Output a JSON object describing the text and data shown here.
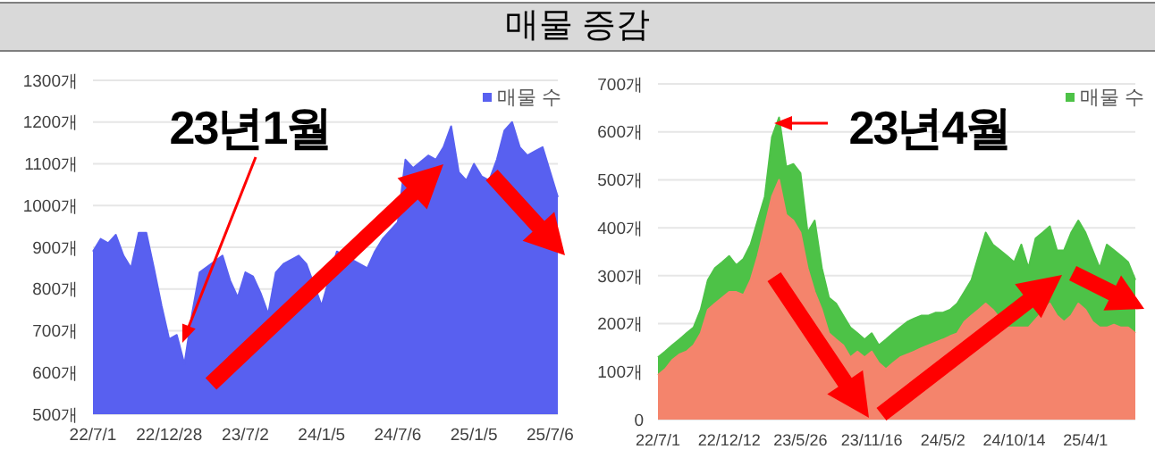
{
  "chart_data": [
    {
      "type": "area",
      "title": "매물 증감",
      "categories": [
        "22/7/1",
        null,
        null,
        null,
        null,
        null,
        null,
        null,
        null,
        null,
        "22/12/28",
        null,
        null,
        null,
        null,
        null,
        null,
        null,
        null,
        null,
        "23/7/2",
        null,
        null,
        null,
        null,
        null,
        null,
        null,
        null,
        null,
        "24/1/5",
        null,
        null,
        null,
        null,
        null,
        null,
        null,
        null,
        null,
        "24/7/6",
        null,
        null,
        null,
        null,
        null,
        null,
        null,
        null,
        null,
        "25/1/5",
        null,
        null,
        null,
        null,
        null,
        null,
        null,
        null,
        null,
        "25/7/6",
        null
      ],
      "series": [
        {
          "name": "매물 수",
          "color": "#5860f0",
          "values": [
            890,
            920,
            910,
            930,
            880,
            850,
            935,
            935,
            850,
            760,
            680,
            690,
            620,
            740,
            840,
            null,
            null,
            880,
            820,
            780,
            840,
            830,
            790,
            740,
            840,
            860,
            null,
            880,
            860,
            null,
            760,
            null,
            890,
            null,
            null,
            null,
            850,
            890,
            920,
            null,
            960,
            1110,
            1090,
            null,
            1120,
            1110,
            1140,
            1190,
            1080,
            1060,
            1100,
            1070,
            1060,
            1110,
            1180,
            1200,
            1140,
            1120,
            1130,
            1140,
            1080,
            1020
          ]
        }
      ],
      "ylim": [
        500,
        1300
      ],
      "yticks": [
        {
          "value": 500,
          "label": "500개"
        },
        {
          "value": 600,
          "label": "600개"
        },
        {
          "value": 700,
          "label": "700개"
        },
        {
          "value": 800,
          "label": "800개"
        },
        {
          "value": 900,
          "label": "900개"
        },
        {
          "value": 1000,
          "label": "1000개"
        },
        {
          "value": 1100,
          "label": "1100개"
        },
        {
          "value": 1200,
          "label": "1200개"
        },
        {
          "value": 1300,
          "label": "1300개"
        }
      ],
      "grid": "y",
      "legend": "top right",
      "annotations": [
        "23년1월"
      ]
    },
    {
      "type": "area",
      "categories": [
        "22/7/1",
        null,
        null,
        null,
        null,
        null,
        null,
        null,
        null,
        null,
        "22/12/12",
        null,
        null,
        null,
        null,
        null,
        null,
        null,
        null,
        null,
        "23/5/26",
        null,
        null,
        null,
        null,
        null,
        null,
        null,
        null,
        null,
        "23/11/16",
        null,
        null,
        null,
        null,
        null,
        null,
        null,
        null,
        null,
        "24/5/2",
        null,
        null,
        null,
        null,
        null,
        null,
        null,
        null,
        null,
        "24/10/14",
        null,
        null,
        null,
        null,
        null,
        null,
        null,
        null,
        null,
        "25/4/1",
        null,
        null,
        null,
        null,
        null,
        null,
        null
      ],
      "series": [
        {
          "name": "매물 수",
          "color": "#4dc247",
          "values": [
            130,
            142,
            155,
            167,
            180,
            192,
            229,
            291,
            316,
            328,
            341,
            322,
            335,
            365,
            415,
            465,
            589,
            630,
            527,
            533,
            514,
            390,
            415,
            316,
            254,
            242,
            217,
            192,
            180,
            167,
            180,
            155,
            167,
            180,
            192,
            204,
            211,
            217,
            217,
            223,
            223,
            229,
            242,
            266,
            291,
            341,
            390,
            365,
            353,
            341,
            328,
            365,
            316,
            378,
            390,
            403,
            353,
            353,
            390,
            415,
            390,
            353,
            316,
            365,
            353,
            341,
            328,
            291
          ]
        },
        {
          "color": "#f4846c",
          "values": [
            93,
            105,
            124,
            136,
            142,
            155,
            180,
            229,
            242,
            254,
            266,
            266,
            260,
            291,
            341,
            403,
            465,
            500,
            427,
            415,
            390,
            316,
            266,
            229,
            180,
            167,
            155,
            130,
            142,
            130,
            142,
            118,
            105,
            118,
            130,
            136,
            142,
            149,
            155,
            161,
            167,
            174,
            180,
            204,
            217,
            229,
            242,
            229,
            null,
            192,
            null,
            null,
            192,
            null,
            null,
            242,
            217,
            204,
            217,
            242,
            229,
            204,
            192,
            192,
            198,
            192,
            192,
            180
          ]
        }
      ],
      "ylim": [
        0,
        700
      ],
      "yticks": [
        0,
        {
          "value": 100,
          "label": "100개"
        },
        {
          "value": 200,
          "label": "200개"
        },
        {
          "value": 300,
          "label": "300개"
        },
        {
          "value": 400,
          "label": "400개"
        },
        {
          "value": 500,
          "label": "500개"
        },
        {
          "value": 600,
          "label": "600개"
        },
        {
          "value": 700,
          "label": "700개"
        }
      ],
      "grid": "y",
      "legend": "top right",
      "annotations": [
        "23년4월"
      ]
    }
  ]
}
